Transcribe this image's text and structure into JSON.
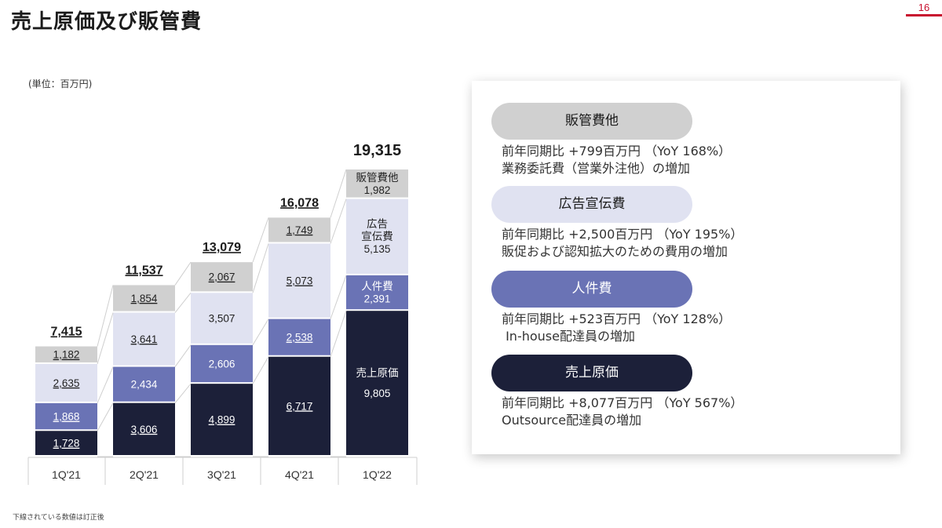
{
  "title": "売上原価及び販管費",
  "page_number": "16",
  "unit_note": "(単位：百万円)",
  "footnote": "下線されている数値は訂正後",
  "colors": {
    "cogs": "#1c2039",
    "personnel": "#6a73b5",
    "advertising": "#e0e2f1",
    "other_sga": "#d0d0d0",
    "accent": "#c8102e"
  },
  "chart_data": {
    "type": "bar",
    "stacked": true,
    "categories": [
      "1Q'21",
      "2Q'21",
      "3Q'21",
      "4Q'21",
      "1Q'22"
    ],
    "series": [
      {
        "key": "cogs",
        "values": [
          1728,
          3606,
          4899,
          6717,
          9805
        ]
      },
      {
        "key": "personnel",
        "values": [
          1868,
          2434,
          2606,
          2538,
          2391
        ]
      },
      {
        "key": "advertising",
        "values": [
          2635,
          3641,
          3507,
          5073,
          5135
        ]
      },
      {
        "key": "other_sga",
        "values": [
          1182,
          1854,
          2067,
          1749,
          1982
        ]
      }
    ],
    "value_labels": [
      [
        "1,728",
        "1,868",
        "2,635",
        "1,182"
      ],
      [
        "3,606",
        "2,434",
        "3,641",
        "1,854"
      ],
      [
        "4,899",
        "2,606",
        "3,507",
        "2,067"
      ],
      [
        "6,717",
        "2,538",
        "5,073",
        "1,749"
      ],
      [
        "9,805",
        "2,391",
        "5,135",
        "1,982"
      ]
    ],
    "underlined": [
      [
        true,
        true,
        true,
        true
      ],
      [
        true,
        false,
        true,
        true
      ],
      [
        true,
        false,
        false,
        true
      ],
      [
        true,
        true,
        true,
        true
      ],
      [
        false,
        false,
        false,
        false
      ]
    ],
    "last_bar_series_labels": [
      "売上原価",
      "人件費",
      "広告\n宣伝費",
      "販管費他"
    ],
    "totals": [
      7415,
      11537,
      13079,
      16078,
      19315
    ],
    "total_labels": [
      "7,415",
      "11,537",
      "13,079",
      "16,078",
      "19,315"
    ],
    "ylim": [
      0,
      19315
    ]
  },
  "panel": {
    "items": [
      {
        "label": "販管費他",
        "line1": "前年同期比 +799百万円 （YoY 168%）",
        "line2": "業務委託費（営業外注他）の増加"
      },
      {
        "label": "広告宣伝費",
        "line1": "前年同期比 +2,500百万円 （YoY 195%）",
        "line2": "販促および認知拡大のための費用の増加"
      },
      {
        "label": "人件費",
        "line1": "前年同期比 +523百万円 （YoY 128%）",
        "line2": " In-house配達員の増加"
      },
      {
        "label": "売上原価",
        "line1": "前年同期比 +8,077百万円 （YoY 567%）",
        "line2": "Outsource配達員の増加"
      }
    ]
  }
}
